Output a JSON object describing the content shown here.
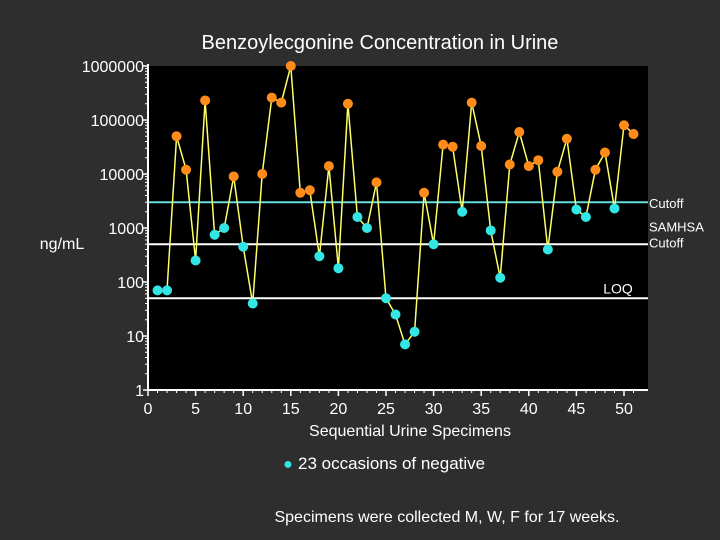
{
  "chart_data": {
    "type": "line",
    "title": "Benzoylecgonine Concentration in Urine",
    "xlabel": "Sequential Urine Specimens",
    "ylabel": "ng/mL",
    "y_scale": "log",
    "ylim": [
      1,
      1000000
    ],
    "xlim": [
      0,
      50
    ],
    "xticks": [
      0,
      5,
      10,
      15,
      20,
      25,
      30,
      35,
      40,
      45,
      50
    ],
    "yticks": [
      {
        "value": 1,
        "label": "1"
      },
      {
        "value": 10,
        "label": "10"
      },
      {
        "value": 100,
        "label": "100"
      },
      {
        "value": 1000,
        "label": "1000"
      },
      {
        "value": 10000,
        "label": "10000"
      },
      {
        "value": 100000,
        "label": "100000"
      },
      {
        "value": 1000000,
        "label": "1000000"
      }
    ],
    "grid": false,
    "series_color": "#ffff66",
    "positive_color": "#ff8c1a",
    "negative_color": "#33e6e6",
    "reference_lines": [
      {
        "label": "Cutoff",
        "value": 3000,
        "color": "#66dddd"
      },
      {
        "label": "SAMHSA Cutoff",
        "value": 500,
        "color": "#ffffff"
      },
      {
        "label": "LOQ",
        "value": 50,
        "color": "#ffffff"
      }
    ],
    "points": [
      {
        "x": 1,
        "y": 70,
        "negative": true
      },
      {
        "x": 2,
        "y": 70,
        "negative": true
      },
      {
        "x": 3,
        "y": 50000,
        "negative": false
      },
      {
        "x": 4,
        "y": 12000,
        "negative": false
      },
      {
        "x": 5,
        "y": 250,
        "negative": true
      },
      {
        "x": 6,
        "y": 230000,
        "negative": false
      },
      {
        "x": 7,
        "y": 750,
        "negative": true
      },
      {
        "x": 8,
        "y": 1000,
        "negative": true
      },
      {
        "x": 9,
        "y": 9000,
        "negative": false
      },
      {
        "x": 10,
        "y": 450,
        "negative": true
      },
      {
        "x": 11,
        "y": 40,
        "negative": true
      },
      {
        "x": 12,
        "y": 10000,
        "negative": false
      },
      {
        "x": 13,
        "y": 260000,
        "negative": false
      },
      {
        "x": 14,
        "y": 210000,
        "negative": false
      },
      {
        "x": 15,
        "y": 1000000,
        "negative": false
      },
      {
        "x": 16,
        "y": 4500,
        "negative": false
      },
      {
        "x": 17,
        "y": 5000,
        "negative": false
      },
      {
        "x": 18,
        "y": 300,
        "negative": true
      },
      {
        "x": 19,
        "y": 14000,
        "negative": false
      },
      {
        "x": 20,
        "y": 180,
        "negative": true
      },
      {
        "x": 21,
        "y": 200000,
        "negative": false
      },
      {
        "x": 22,
        "y": 1600,
        "negative": true
      },
      {
        "x": 23,
        "y": 1000,
        "negative": true
      },
      {
        "x": 24,
        "y": 7000,
        "negative": false
      },
      {
        "x": 25,
        "y": 50,
        "negative": true
      },
      {
        "x": 26,
        "y": 25,
        "negative": true
      },
      {
        "x": 27,
        "y": 7,
        "negative": true
      },
      {
        "x": 28,
        "y": 12,
        "negative": true
      },
      {
        "x": 29,
        "y": 4500,
        "negative": false
      },
      {
        "x": 30,
        "y": 500,
        "negative": true
      },
      {
        "x": 31,
        "y": 35000,
        "negative": false
      },
      {
        "x": 32,
        "y": 32000,
        "negative": false
      },
      {
        "x": 33,
        "y": 2000,
        "negative": true
      },
      {
        "x": 34,
        "y": 210000,
        "negative": false
      },
      {
        "x": 35,
        "y": 33000,
        "negative": false
      },
      {
        "x": 36,
        "y": 900,
        "negative": true
      },
      {
        "x": 37,
        "y": 120,
        "negative": true
      },
      {
        "x": 38,
        "y": 15000,
        "negative": false
      },
      {
        "x": 39,
        "y": 60000,
        "negative": false
      },
      {
        "x": 40,
        "y": 14000,
        "negative": false
      },
      {
        "x": 41,
        "y": 18000,
        "negative": false
      },
      {
        "x": 42,
        "y": 400,
        "negative": true
      },
      {
        "x": 43,
        "y": 11000,
        "negative": false
      },
      {
        "x": 44,
        "y": 45000,
        "negative": false
      },
      {
        "x": 45,
        "y": 2200,
        "negative": true
      },
      {
        "x": 46,
        "y": 1600,
        "negative": true
      },
      {
        "x": 47,
        "y": 12000,
        "negative": false
      },
      {
        "x": 48,
        "y": 25000,
        "negative": false
      },
      {
        "x": 49,
        "y": 2300,
        "negative": true
      },
      {
        "x": 50,
        "y": 80000,
        "negative": false
      },
      {
        "x": 51,
        "y": 55000,
        "negative": false
      }
    ]
  },
  "annotations": {
    "legend_marker": "●",
    "negative_note": "23 occasions of negative",
    "footnote": "Specimens were collected M, W, F for 17 weeks."
  }
}
